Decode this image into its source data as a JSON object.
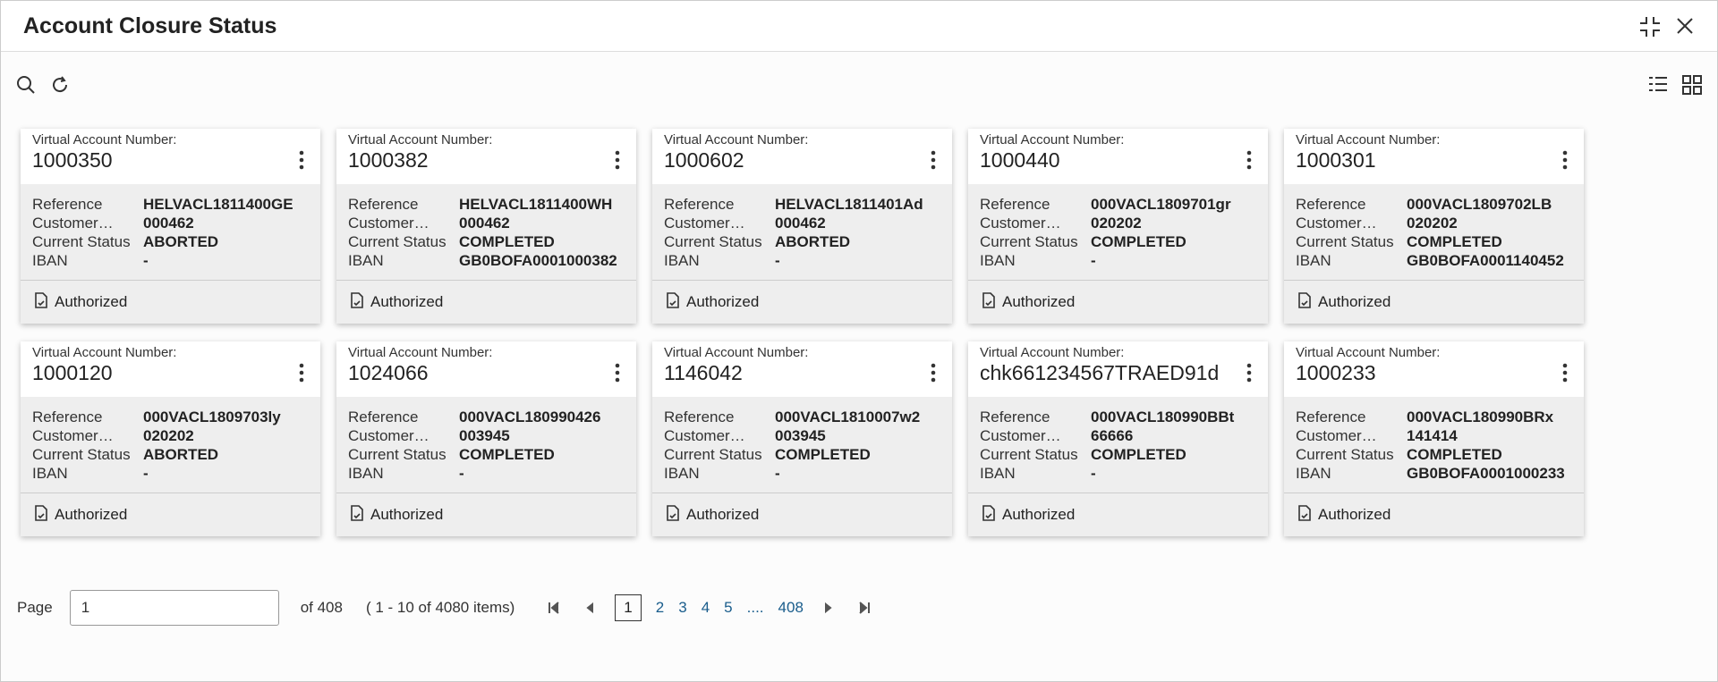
{
  "header": {
    "title": "Account Closure Status"
  },
  "account_label": "Virtual Account Number:",
  "field_labels": [
    "Reference",
    "Customer…",
    "Current Status",
    "IBAN"
  ],
  "status_label": "Authorized",
  "cards": [
    {
      "account": "1000350",
      "values": [
        "HELVACL1811400GE",
        "000462",
        "ABORTED",
        "-"
      ]
    },
    {
      "account": "1000382",
      "values": [
        "HELVACL1811400WH",
        "000462",
        "COMPLETED",
        "GB0BOFA0001000382"
      ]
    },
    {
      "account": "1000602",
      "values": [
        "HELVACL1811401Ad",
        "000462",
        "ABORTED",
        "-"
      ]
    },
    {
      "account": "1000440",
      "values": [
        "000VACL1809701gr",
        "020202",
        "COMPLETED",
        "-"
      ]
    },
    {
      "account": "1000301",
      "values": [
        "000VACL1809702LB",
        "020202",
        "COMPLETED",
        "GB0BOFA0001140452"
      ]
    },
    {
      "account": "1000120",
      "values": [
        "000VACL1809703ly",
        "020202",
        "ABORTED",
        "-"
      ]
    },
    {
      "account": "1024066",
      "values": [
        "000VACL180990426",
        "003945",
        "COMPLETED",
        "-"
      ]
    },
    {
      "account": "1146042",
      "values": [
        "000VACL1810007w2",
        "003945",
        "COMPLETED",
        "-"
      ]
    },
    {
      "account": "chk661234567TRAED91d",
      "values": [
        "000VACL180990BBt",
        "66666",
        "COMPLETED",
        "-"
      ]
    },
    {
      "account": "1000233",
      "values": [
        "000VACL180990BRx",
        "141414",
        "COMPLETED",
        "GB0BOFA0001000233"
      ]
    }
  ],
  "pagination": {
    "page_label": "Page",
    "page_input": "1",
    "of_pages": "of 408",
    "items": "( 1 - 10 of 4080 items)",
    "pages": [
      "1",
      "2",
      "3",
      "4",
      "5",
      "....",
      "408"
    ]
  }
}
